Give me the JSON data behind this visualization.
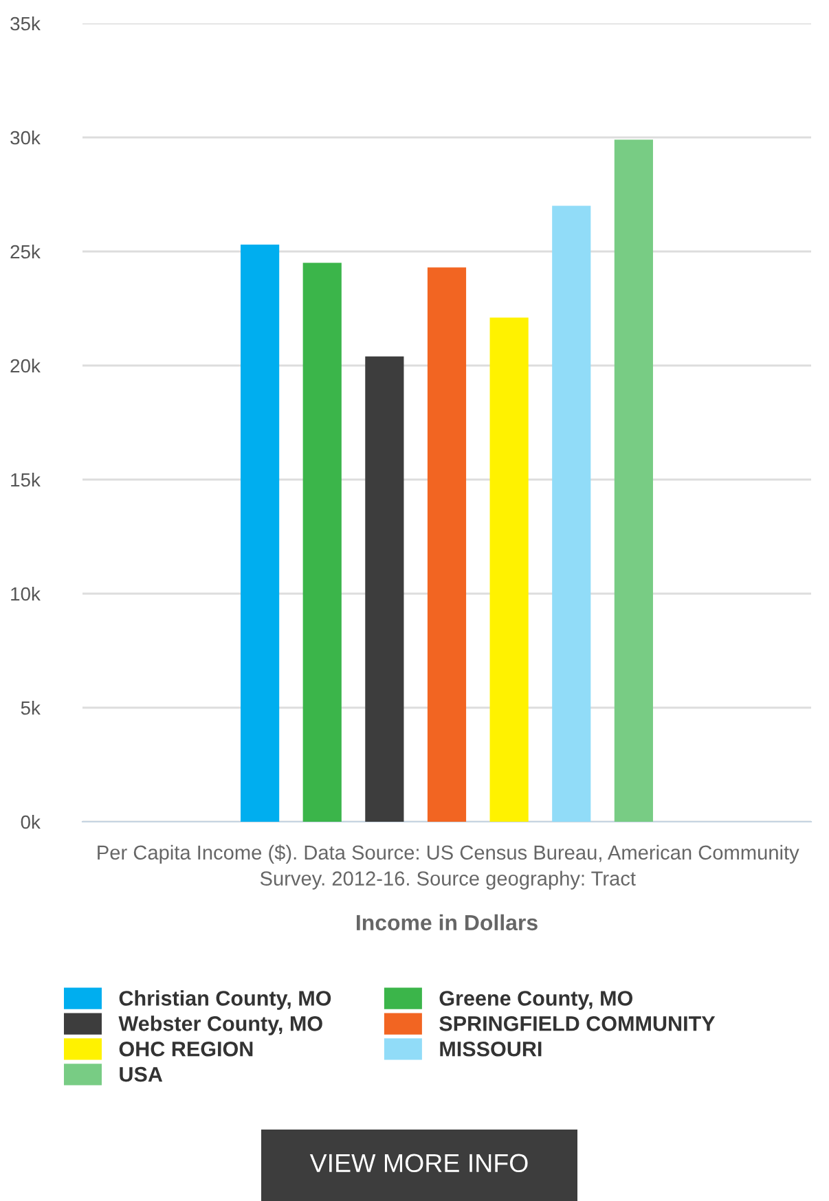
{
  "chart_data": {
    "type": "bar",
    "xlabel": "Income in Dollars",
    "categories": [
      null
    ],
    "series": [
      {
        "name": "Christian County, MO",
        "color": "#00aeef",
        "values": [
          25300
        ]
      },
      {
        "name": "Greene County, MO",
        "color": "#3bb54a",
        "values": [
          24500
        ]
      },
      {
        "name": "Webster County, MO",
        "color": "#3d3d3d",
        "values": [
          20400
        ]
      },
      {
        "name": "SPRINGFIELD COMMUNITY",
        "color": "#f26522",
        "values": [
          24300
        ]
      },
      {
        "name": "OHC REGION",
        "color": "#fff200",
        "values": [
          22100
        ]
      },
      {
        "name": "MISSOURI",
        "color": "#91dcf8",
        "values": [
          27000
        ]
      },
      {
        "name": "USA",
        "color": "#78cc84",
        "values": [
          29900
        ]
      }
    ],
    "ylim": [
      0,
      35000
    ],
    "yticks": [
      {
        "value": 0,
        "label": "0k"
      },
      {
        "value": 5000,
        "label": "5k"
      },
      {
        "value": 10000,
        "label": "10k"
      },
      {
        "value": 15000,
        "label": "15k"
      },
      {
        "value": 20000,
        "label": "20k"
      },
      {
        "value": 25000,
        "label": "25k"
      },
      {
        "value": 30000,
        "label": "30k"
      },
      {
        "value": 35000,
        "label": "35k"
      }
    ],
    "grid": "y",
    "legend": "bottom",
    "annotations": [
      "Per Capita Income ($). Data Source: US Census Bureau, American Community Survey. 2012-16. Source geography: Tract",
      "VIEW MORE INFO"
    ]
  }
}
